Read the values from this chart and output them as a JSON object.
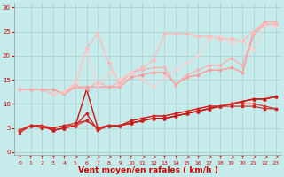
{
  "bg_color": "#c5ecea",
  "grid_color": "#aacccc",
  "xlabel": "Vent moyen/en rafales ( km/h )",
  "ylim": [
    -0.5,
    31
  ],
  "xlim": [
    -0.5,
    23.5
  ],
  "yticks": [
    0,
    5,
    10,
    15,
    20,
    25,
    30
  ],
  "xticks": [
    0,
    1,
    2,
    3,
    4,
    5,
    6,
    7,
    8,
    9,
    10,
    11,
    12,
    13,
    14,
    15,
    16,
    17,
    18,
    19,
    20,
    21,
    22,
    23
  ],
  "series": [
    {
      "x": [
        0,
        1,
        2,
        3,
        4,
        5,
        6,
        7,
        8,
        9,
        10,
        11,
        12,
        13,
        14,
        15,
        16,
        17,
        18,
        19,
        20,
        21,
        22,
        23
      ],
      "y": [
        4.5,
        5.5,
        5.5,
        4.5,
        5.0,
        5.5,
        8.0,
        4.5,
        5.5,
        5.5,
        6.0,
        6.5,
        7.0,
        7.0,
        7.5,
        8.0,
        8.5,
        9.0,
        9.5,
        10.0,
        10.5,
        11.0,
        11.0,
        11.5
      ],
      "color": "#cc2222",
      "marker": "s",
      "markersize": 2,
      "linewidth": 1.0
    },
    {
      "x": [
        0,
        1,
        2,
        3,
        4,
        5,
        6,
        7,
        8,
        9,
        10,
        11,
        12,
        13,
        14,
        15,
        16,
        17,
        18,
        19,
        20,
        21,
        22,
        23
      ],
      "y": [
        4.5,
        5.5,
        5.5,
        4.5,
        5.0,
        5.5,
        13.0,
        5.0,
        5.5,
        5.5,
        6.0,
        6.5,
        7.0,
        7.0,
        7.5,
        8.0,
        8.5,
        9.0,
        9.5,
        10.0,
        10.5,
        11.0,
        11.0,
        11.5
      ],
      "color": "#cc1111",
      "marker": "^",
      "markersize": 2,
      "linewidth": 1.0
    },
    {
      "x": [
        0,
        1,
        2,
        3,
        4,
        5,
        6,
        7,
        8,
        9,
        10,
        11,
        12,
        13,
        14,
        15,
        16,
        17,
        18,
        19,
        20,
        21,
        22,
        23
      ],
      "y": [
        4.5,
        5.5,
        5.5,
        5.0,
        5.5,
        5.5,
        6.5,
        5.0,
        5.5,
        5.5,
        6.5,
        7.0,
        7.5,
        7.5,
        8.0,
        8.5,
        9.0,
        9.5,
        9.5,
        10.0,
        10.0,
        10.0,
        9.5,
        9.0
      ],
      "color": "#dd3333",
      "marker": "D",
      "markersize": 1.5,
      "linewidth": 0.9
    },
    {
      "x": [
        0,
        1,
        2,
        3,
        4,
        5,
        6,
        7,
        8,
        9,
        10,
        11,
        12,
        13,
        14,
        15,
        16,
        17,
        18,
        19,
        20,
        21,
        22,
        23
      ],
      "y": [
        4.0,
        5.5,
        5.0,
        5.0,
        5.5,
        6.0,
        6.5,
        5.0,
        5.5,
        5.5,
        6.5,
        7.0,
        7.5,
        7.5,
        8.0,
        8.5,
        9.0,
        9.5,
        9.5,
        9.5,
        9.5,
        9.5,
        9.0,
        9.0
      ],
      "color": "#cc2222",
      "marker": "x",
      "markersize": 2,
      "linewidth": 0.8
    },
    {
      "x": [
        0,
        1,
        2,
        3,
        4,
        5,
        6,
        7,
        8,
        9,
        10,
        11,
        12,
        13,
        14,
        15,
        16,
        17,
        18,
        19,
        20,
        21,
        22,
        23
      ],
      "y": [
        13.0,
        13.0,
        13.0,
        13.0,
        12.0,
        13.5,
        13.5,
        13.5,
        13.5,
        13.5,
        15.5,
        16.0,
        16.5,
        16.5,
        14.0,
        15.5,
        16.0,
        17.0,
        17.0,
        17.5,
        16.5,
        24.5,
        26.5,
        26.5
      ],
      "color": "#ff9999",
      "marker": "s",
      "markersize": 2,
      "linewidth": 1.0
    },
    {
      "x": [
        0,
        1,
        2,
        3,
        4,
        5,
        6,
        7,
        8,
        9,
        10,
        11,
        12,
        13,
        14,
        15,
        16,
        17,
        18,
        19,
        20,
        21,
        22,
        23
      ],
      "y": [
        13.0,
        13.0,
        13.0,
        12.0,
        12.5,
        13.5,
        13.0,
        14.5,
        13.5,
        14.5,
        16.5,
        17.0,
        17.5,
        17.5,
        14.0,
        16.0,
        17.0,
        18.0,
        18.0,
        19.5,
        18.0,
        25.0,
        27.0,
        27.0
      ],
      "color": "#ffaaaa",
      "marker": "+",
      "markersize": 3,
      "linewidth": 0.8
    },
    {
      "x": [
        3,
        4,
        5,
        6,
        7,
        8,
        9,
        10,
        11,
        12,
        13,
        14,
        15,
        16,
        17,
        18,
        19,
        20,
        21,
        22,
        23
      ],
      "y": [
        12.0,
        12.5,
        14.0,
        21.5,
        24.5,
        18.5,
        14.0,
        16.5,
        17.5,
        19.0,
        24.5,
        24.5,
        24.5,
        24.0,
        24.0,
        23.5,
        23.5,
        23.0,
        25.0,
        26.5,
        26.5
      ],
      "color": "#ffbbbb",
      "marker": "D",
      "markersize": 2,
      "linewidth": 1.0
    },
    {
      "x": [
        3,
        4,
        5,
        6,
        7,
        8,
        9,
        10,
        11,
        12,
        13,
        14,
        15,
        16,
        17,
        18,
        19,
        20,
        21,
        22,
        23
      ],
      "y": [
        12.0,
        12.5,
        14.5,
        21.0,
        13.5,
        16.5,
        15.0,
        16.5,
        15.0,
        13.5,
        15.5,
        17.0,
        18.5,
        20.0,
        23.5,
        24.0,
        22.5,
        23.0,
        21.0,
        26.0,
        26.0
      ],
      "color": "#ffcccc",
      "marker": "v",
      "markersize": 2,
      "linewidth": 0.8
    }
  ],
  "arrows": [
    "↑",
    "↑",
    "↑",
    "↑",
    "↑",
    "↗",
    "↗",
    "↗",
    "↗",
    "↑",
    "↑",
    "↗",
    "↗",
    "↑",
    "↑",
    "↗",
    "↑",
    "↗",
    "↑",
    "↗",
    "↑",
    "↗",
    "↗",
    "↗"
  ],
  "font_color": "#cc0000",
  "label_fontsize": 6.5,
  "tick_fontsize": 5
}
